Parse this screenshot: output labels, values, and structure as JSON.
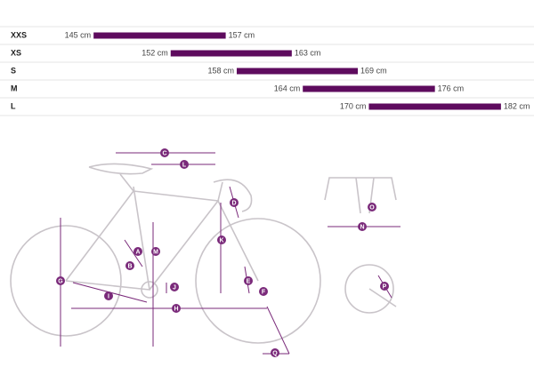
{
  "chart_data": {
    "type": "range-bar",
    "categories": [
      "XXS",
      "XS",
      "S",
      "M",
      "L"
    ],
    "starts": [
      145,
      152,
      158,
      164,
      170
    ],
    "ends": [
      157,
      163,
      169,
      176,
      182
    ],
    "start_labels": [
      "145 cm",
      "152 cm",
      "158 cm",
      "164 cm",
      "170 cm"
    ],
    "end_labels": [
      "157 cm",
      "163 cm",
      "169 cm",
      "176 cm",
      "182 cm"
    ],
    "color": "#5e0b5e",
    "xlim": [
      136.5,
      185
    ]
  },
  "diagram": {
    "labels": [
      "C",
      "L",
      "D",
      "A",
      "M",
      "K",
      "B",
      "E",
      "J",
      "F",
      "I",
      "H",
      "G",
      "Q",
      "O",
      "N",
      "P"
    ]
  }
}
